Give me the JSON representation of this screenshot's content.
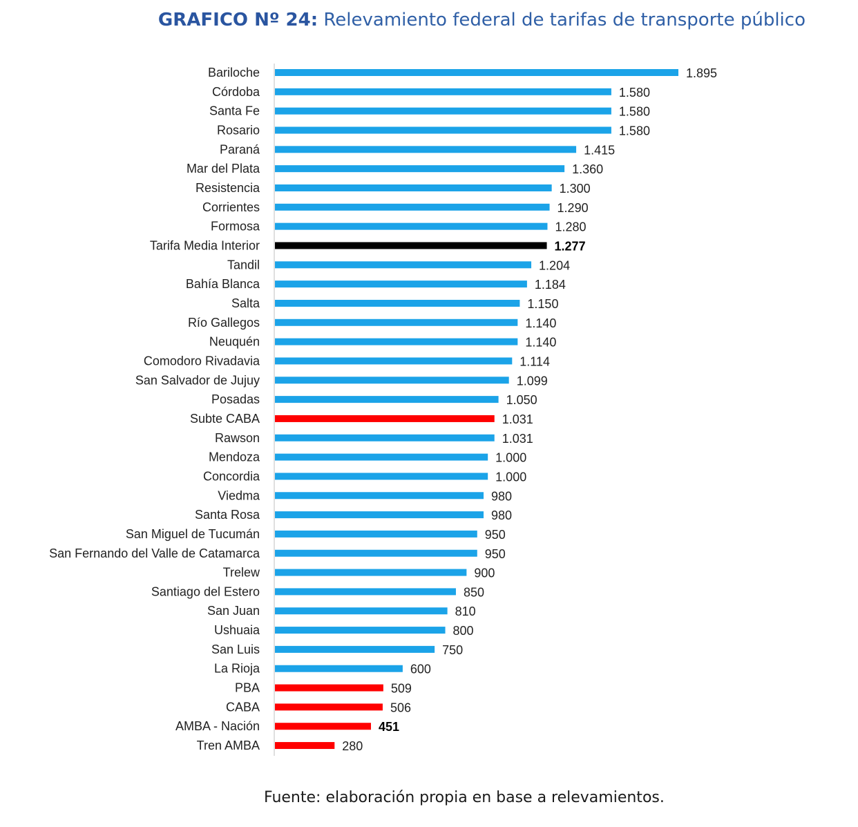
{
  "header": {
    "title_prefix": "GRAFICO Nº 24:",
    "title_text": " Relevamiento federal de tarifas de transporte público"
  },
  "footer": {
    "source": "Fuente: elaboración propia en base a relevamientos."
  },
  "colors": {
    "interior": "#1ba3e8",
    "average": "#000000",
    "amba": "#ff0000",
    "axis": "#bfbfbf",
    "title": "#2f5fa6"
  },
  "chart_data": {
    "type": "bar",
    "orientation": "horizontal",
    "grid": false,
    "legend": "none",
    "xlim": [
      0,
      1895
    ],
    "categories": [
      "Bariloche",
      "Córdoba",
      "Santa Fe",
      "Rosario",
      "Paraná",
      "Mar del Plata",
      "Resistencia",
      "Corrientes",
      "Formosa",
      "Tarifa Media Interior",
      "Tandil",
      "Bahía Blanca",
      "Salta",
      "Río Gallegos",
      "Neuquén",
      "Comodoro Rivadavia",
      "San Salvador de Jujuy",
      "Posadas",
      "Subte CABA",
      "Rawson",
      "Mendoza",
      "Concordia",
      "Viedma",
      "Santa Rosa",
      "San Miguel de Tucumán",
      "San Fernando del Valle de Catamarca",
      "Trelew",
      "Santiago del Estero",
      "San Juan",
      "Ushuaia",
      "San Luis",
      "La Rioja",
      "PBA",
      "CABA",
      "AMBA - Nación",
      "Tren AMBA"
    ],
    "values": [
      1895,
      1580,
      1580,
      1580,
      1415,
      1360,
      1300,
      1290,
      1280,
      1277,
      1204,
      1184,
      1150,
      1140,
      1140,
      1114,
      1099,
      1050,
      1031,
      1031,
      1000,
      1000,
      980,
      980,
      950,
      950,
      900,
      850,
      810,
      800,
      750,
      600,
      509,
      506,
      451,
      280
    ],
    "value_labels": [
      "1.895",
      "1.580",
      "1.580",
      "1.580",
      "1.415",
      "1.360",
      "1.300",
      "1.290",
      "1.280",
      "1.277",
      "1.204",
      "1.184",
      "1.150",
      "1.140",
      "1.140",
      "1.114",
      "1.099",
      "1.050",
      "1.031",
      "1.031",
      "1.000",
      "1.000",
      "980",
      "980",
      "950",
      "950",
      "900",
      "850",
      "810",
      "800",
      "750",
      "600",
      "509",
      "506",
      "451",
      "280"
    ],
    "bar_groups": [
      "interior",
      "interior",
      "interior",
      "interior",
      "interior",
      "interior",
      "interior",
      "interior",
      "interior",
      "average",
      "interior",
      "interior",
      "interior",
      "interior",
      "interior",
      "interior",
      "interior",
      "interior",
      "amba",
      "interior",
      "interior",
      "interior",
      "interior",
      "interior",
      "interior",
      "interior",
      "interior",
      "interior",
      "interior",
      "interior",
      "interior",
      "interior",
      "amba",
      "amba",
      "amba",
      "amba"
    ],
    "bold_value_labels": [
      "1.277",
      "451"
    ]
  }
}
